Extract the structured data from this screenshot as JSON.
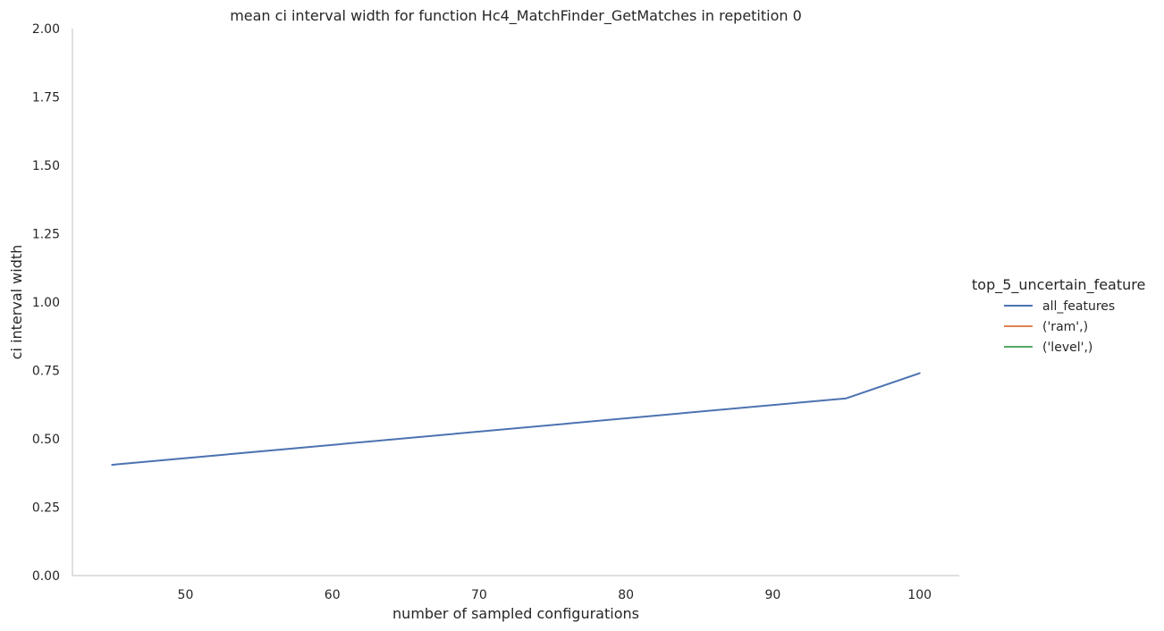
{
  "chart_data": {
    "type": "line",
    "title": "mean ci interval width for function Hc4_MatchFinder_GetMatches in repetition 0",
    "xlabel": "number of sampled configurations",
    "ylabel": "ci interval width",
    "xlim": [
      42.3,
      102.7
    ],
    "ylim": [
      0,
      2
    ],
    "xticks": [
      50,
      60,
      70,
      80,
      90,
      100
    ],
    "yticks": [
      0.0,
      0.25,
      0.5,
      0.75,
      1.0,
      1.25,
      1.5,
      1.75,
      2.0
    ],
    "ytick_labels": [
      "0.00",
      "0.25",
      "0.50",
      "0.75",
      "1.00",
      "1.25",
      "1.50",
      "1.75",
      "2.00"
    ],
    "grid": false,
    "legend": {
      "title": "top_5_uncertain_feature",
      "placement": "right"
    },
    "series": [
      {
        "name": "all_features",
        "color": "#4c72b0",
        "x": [
          45,
          95,
          100
        ],
        "y": [
          0.405,
          0.648,
          0.74
        ]
      },
      {
        "name": "('ram',)",
        "color": "#dd8452",
        "x": [],
        "y": []
      },
      {
        "name": "('level',)",
        "color": "#55a868",
        "x": [],
        "y": []
      }
    ]
  }
}
